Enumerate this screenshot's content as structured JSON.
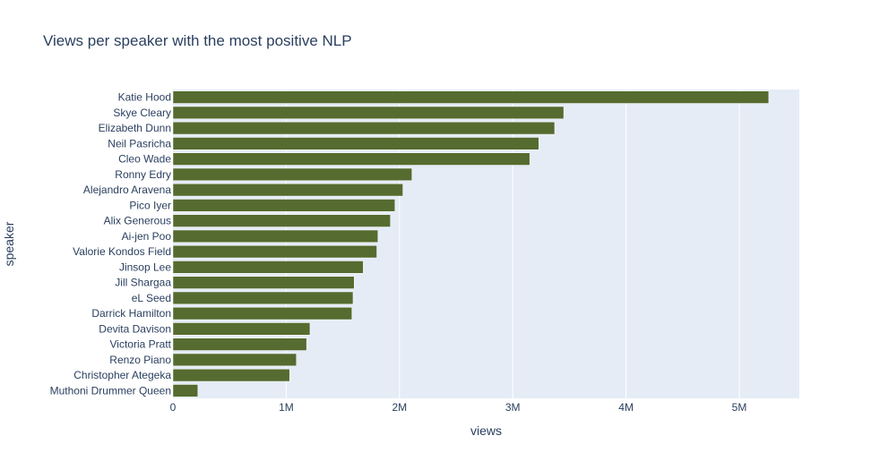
{
  "chart_data": {
    "type": "bar",
    "orientation": "horizontal",
    "title": "Views per speaker with the most positive NLP",
    "xlabel": "views",
    "ylabel": "speaker",
    "xlim": [
      0,
      5530000
    ],
    "xticks": [
      0,
      1000000,
      2000000,
      3000000,
      4000000,
      5000000
    ],
    "xtick_labels": [
      "0",
      "1M",
      "2M",
      "3M",
      "4M",
      "5M"
    ],
    "grid": true,
    "bar_color": "#556b2f",
    "plot_bg": "#e5ecf6",
    "categories": [
      "Katie Hood",
      "Skye Cleary",
      "Elizabeth Dunn",
      "Neil Pasricha",
      "Cleo Wade",
      "Ronny Edry",
      "Alejandro Aravena",
      "Pico Iyer",
      "Alix Generous",
      "Ai-jen Poo",
      "Valorie Kondos Field",
      "Jinsop Lee",
      "Jill Shargaa",
      "eL Seed",
      "Darrick Hamilton",
      "Devita Davison",
      "Victoria Pratt",
      "Renzo Piano",
      "Christopher Ategeka",
      "Muthoni Drummer Queen"
    ],
    "values": [
      5260000,
      3450000,
      3370000,
      3230000,
      3150000,
      2110000,
      2030000,
      1960000,
      1920000,
      1810000,
      1800000,
      1680000,
      1600000,
      1590000,
      1580000,
      1210000,
      1180000,
      1090000,
      1030000,
      220000
    ]
  }
}
